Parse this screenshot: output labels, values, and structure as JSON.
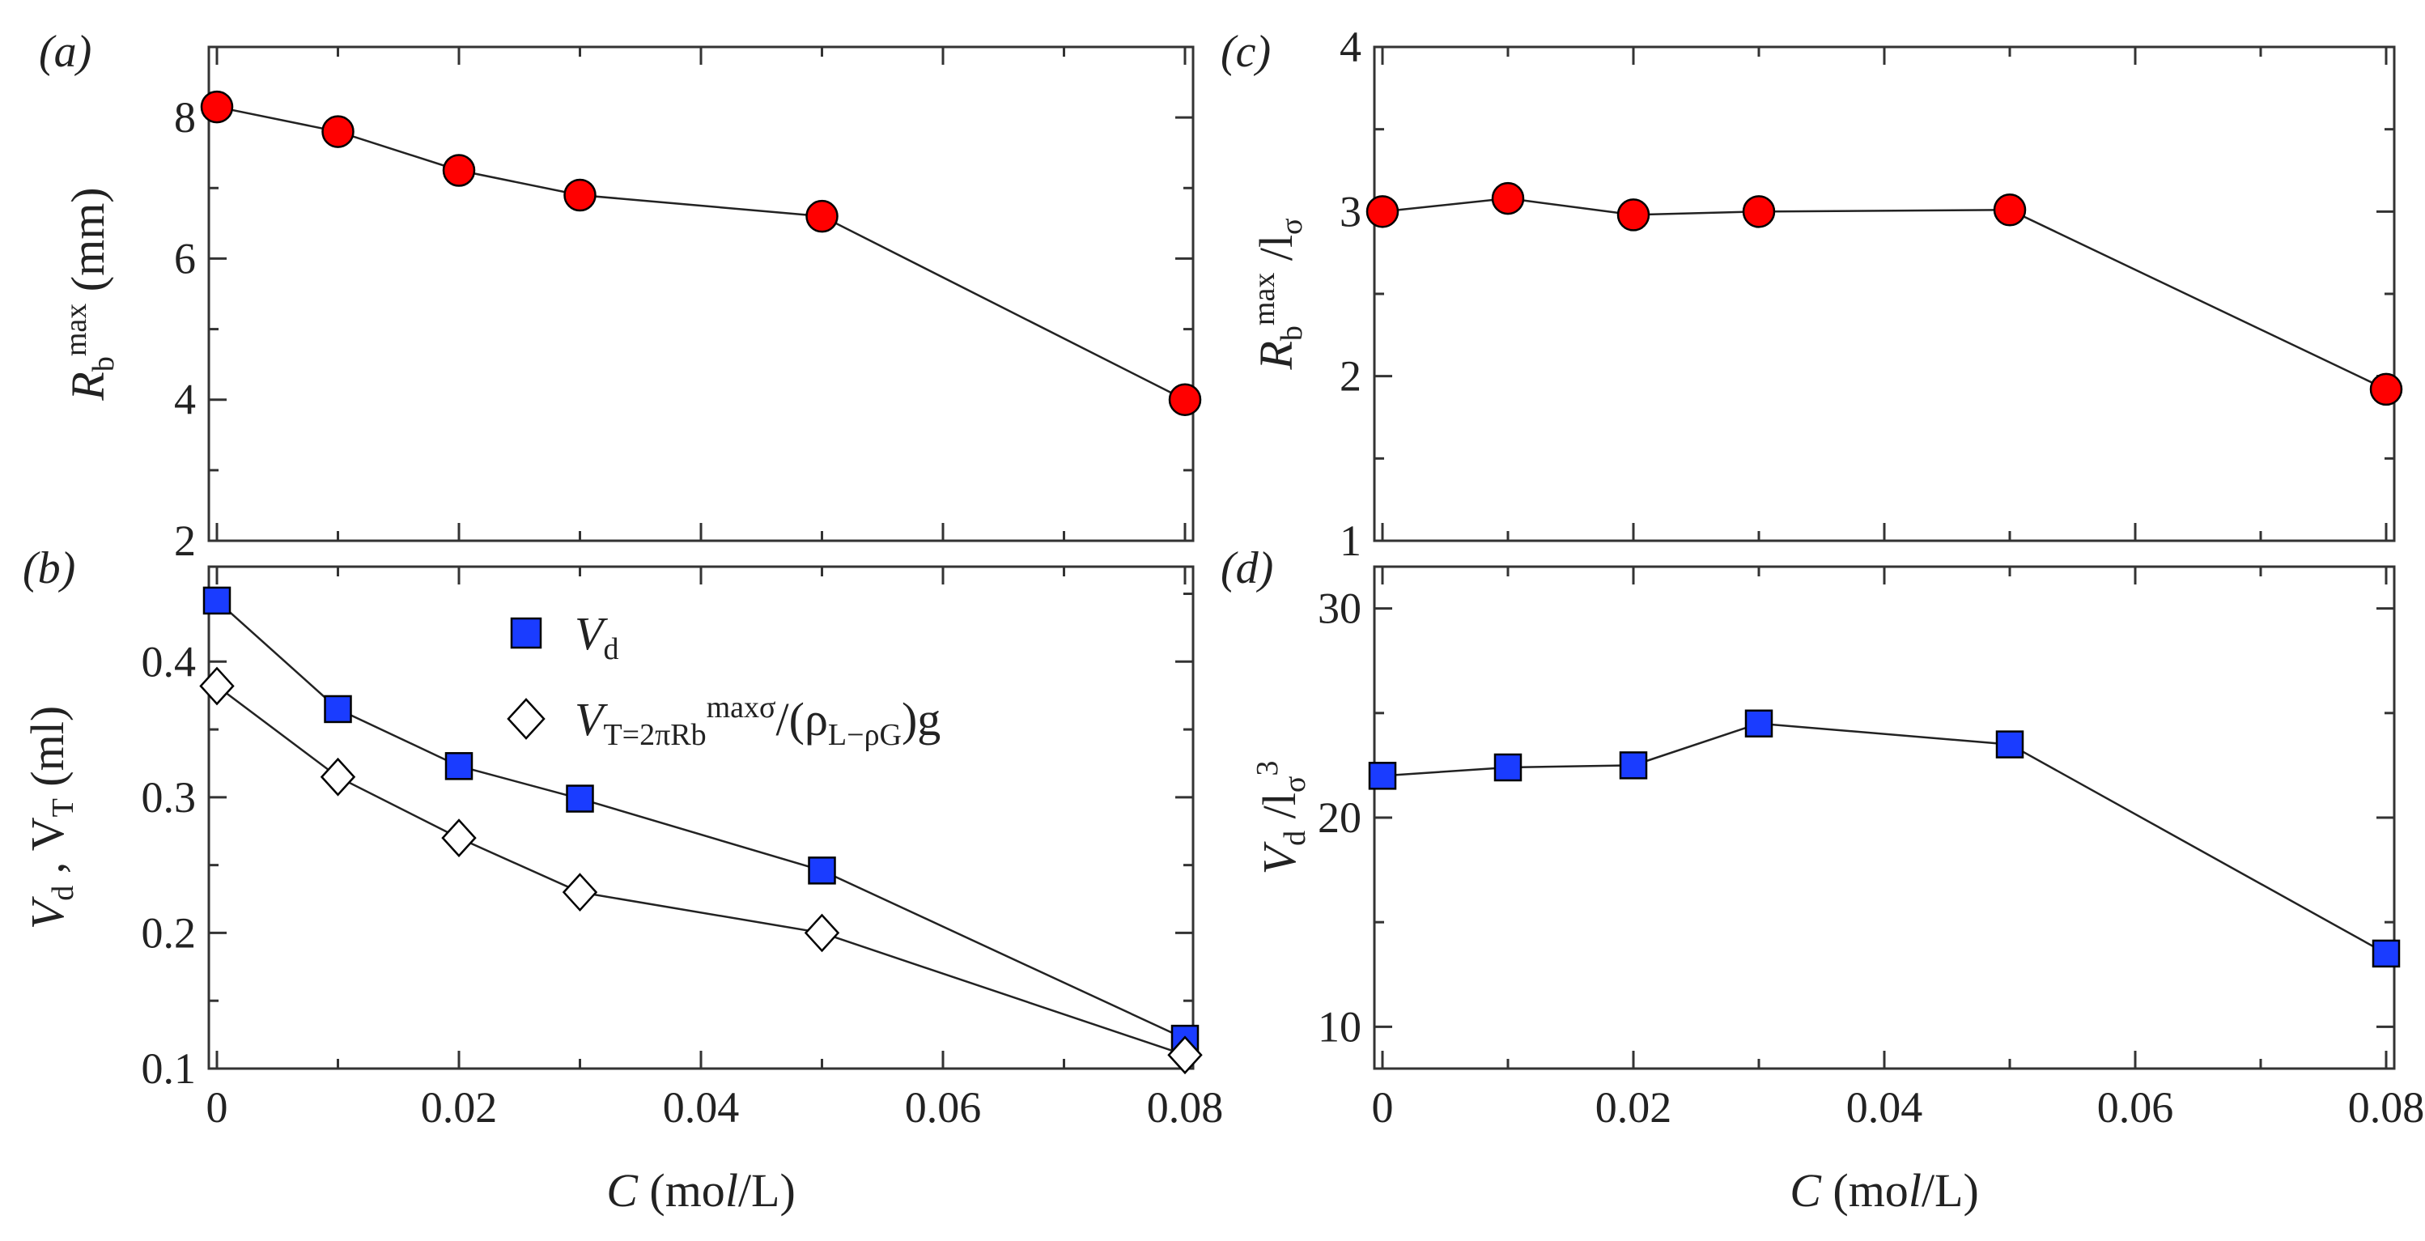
{
  "chart_data": [
    {
      "id": "a",
      "type": "line",
      "panel_label": "(a)",
      "ylabel": "R_b^max (mm)",
      "xlabel": "",
      "xlim": [
        0,
        0.08
      ],
      "ylim": [
        2,
        9
      ],
      "yticks": [
        2,
        4,
        6,
        8
      ],
      "yticks_minor": [
        3,
        5,
        7,
        9
      ],
      "xticks": [
        0,
        0.02,
        0.04,
        0.06,
        0.08
      ],
      "xticks_minor": [
        0.01,
        0.03,
        0.05,
        0.07
      ],
      "show_xtick_labels": false,
      "series": [
        {
          "name": "R_b^max",
          "marker": "circle",
          "color": "#ff0000",
          "x": [
            0,
            0.01,
            0.02,
            0.03,
            0.05,
            0.08
          ],
          "y": [
            8.15,
            7.8,
            7.25,
            6.9,
            6.6,
            4.0
          ]
        }
      ]
    },
    {
      "id": "b",
      "type": "line",
      "panel_label": "(b)",
      "ylabel": "V_d , V_T (ml)",
      "xlabel": "C (mol/L)",
      "xlim": [
        0,
        0.08
      ],
      "ylim": [
        0.1,
        0.47
      ],
      "yticks": [
        0.1,
        0.2,
        0.3,
        0.4
      ],
      "yticks_minor": [
        0.15,
        0.25,
        0.35,
        0.45
      ],
      "xticks": [
        0,
        0.02,
        0.04,
        0.06,
        0.08
      ],
      "xticks_minor": [
        0.01,
        0.03,
        0.05,
        0.07
      ],
      "show_xtick_labels": true,
      "legend": {
        "position": "top-center",
        "entries": [
          "V_d",
          "V_T=2πR_b^maxσ/(ρ_L−ρ_G)g"
        ]
      },
      "series": [
        {
          "name": "V_d",
          "marker": "square",
          "color": "#1a3cff",
          "x": [
            0,
            0.01,
            0.02,
            0.03,
            0.05,
            0.08
          ],
          "y": [
            0.445,
            0.365,
            0.323,
            0.299,
            0.246,
            0.122
          ]
        },
        {
          "name": "V_T",
          "marker": "diamond",
          "color": "#ffffff",
          "x": [
            0,
            0.01,
            0.02,
            0.03,
            0.05,
            0.08
          ],
          "y": [
            0.382,
            0.315,
            0.27,
            0.23,
            0.2,
            0.11
          ]
        }
      ]
    },
    {
      "id": "c",
      "type": "line",
      "panel_label": "(c)",
      "ylabel": "R_b^max /l_σ",
      "xlabel": "",
      "xlim": [
        0,
        0.08
      ],
      "ylim": [
        1,
        4
      ],
      "yticks": [
        1,
        2,
        3,
        4
      ],
      "yticks_minor": [
        1.5,
        2.5,
        3.5
      ],
      "xticks": [
        0,
        0.02,
        0.04,
        0.06,
        0.08
      ],
      "xticks_minor": [
        0.01,
        0.03,
        0.05,
        0.07
      ],
      "show_xtick_labels": false,
      "series": [
        {
          "name": "R_b^max/l_σ",
          "marker": "circle",
          "color": "#ff0000",
          "x": [
            0,
            0.01,
            0.02,
            0.03,
            0.05,
            0.08
          ],
          "y": [
            3.0,
            3.08,
            2.98,
            3.0,
            3.01,
            1.92
          ]
        }
      ]
    },
    {
      "id": "d",
      "type": "line",
      "panel_label": "(d)",
      "ylabel": "V_d /l_σ^3",
      "xlabel": "C (mol/L)",
      "xlim": [
        0,
        0.08
      ],
      "ylim": [
        8,
        32
      ],
      "yticks": [
        10,
        20,
        30
      ],
      "yticks_minor": [
        15,
        25
      ],
      "xticks": [
        0,
        0.02,
        0.04,
        0.06,
        0.08
      ],
      "xticks_minor": [
        0.01,
        0.03,
        0.05,
        0.07
      ],
      "show_xtick_labels": true,
      "series": [
        {
          "name": "V_d/l_σ^3",
          "marker": "square",
          "color": "#1a3cff",
          "x": [
            0,
            0.01,
            0.02,
            0.03,
            0.05,
            0.08
          ],
          "y": [
            22.0,
            22.4,
            22.5,
            24.5,
            23.5,
            13.5
          ]
        }
      ]
    }
  ]
}
